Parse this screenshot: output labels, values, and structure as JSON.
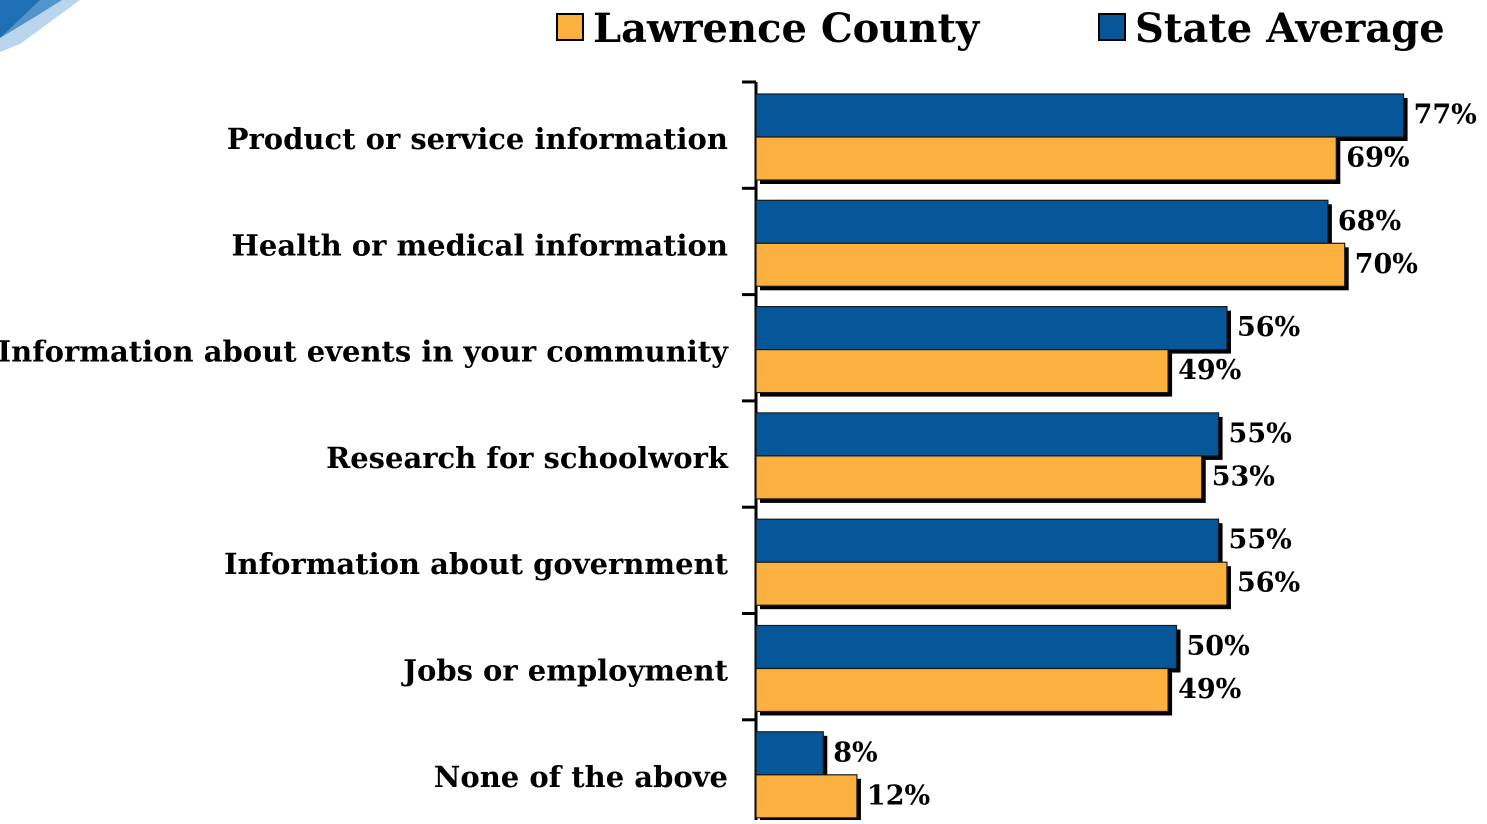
{
  "chart_data": {
    "type": "bar",
    "orientation": "horizontal",
    "categories": [
      "Product or service information",
      "Health or medical information",
      "Information about events in your community",
      "Research for schoolwork",
      "Information about government",
      "Jobs or employment",
      "None of the above"
    ],
    "series": [
      {
        "name": "State Average",
        "color": "#05579a",
        "values": [
          77,
          68,
          56,
          55,
          55,
          50,
          8
        ],
        "labels": [
          "77%",
          "68%",
          "56%",
          "55%",
          "55%",
          "50%",
          "8%"
        ]
      },
      {
        "name": "Lawrence County",
        "color": "#fbb03f",
        "values": [
          69,
          70,
          49,
          53,
          56,
          49,
          12
        ],
        "labels": [
          "69%",
          "70%",
          "49%",
          "53%",
          "56%",
          "49%",
          "12%"
        ]
      }
    ],
    "legend": {
      "position": "top",
      "items": [
        {
          "name": "Lawrence County",
          "color": "#fbb03f"
        },
        {
          "name": "State Average",
          "color": "#05579a"
        }
      ]
    },
    "xlim": [
      0,
      77
    ],
    "grid": false,
    "corner_graphic_color": "#1f6fb4"
  }
}
